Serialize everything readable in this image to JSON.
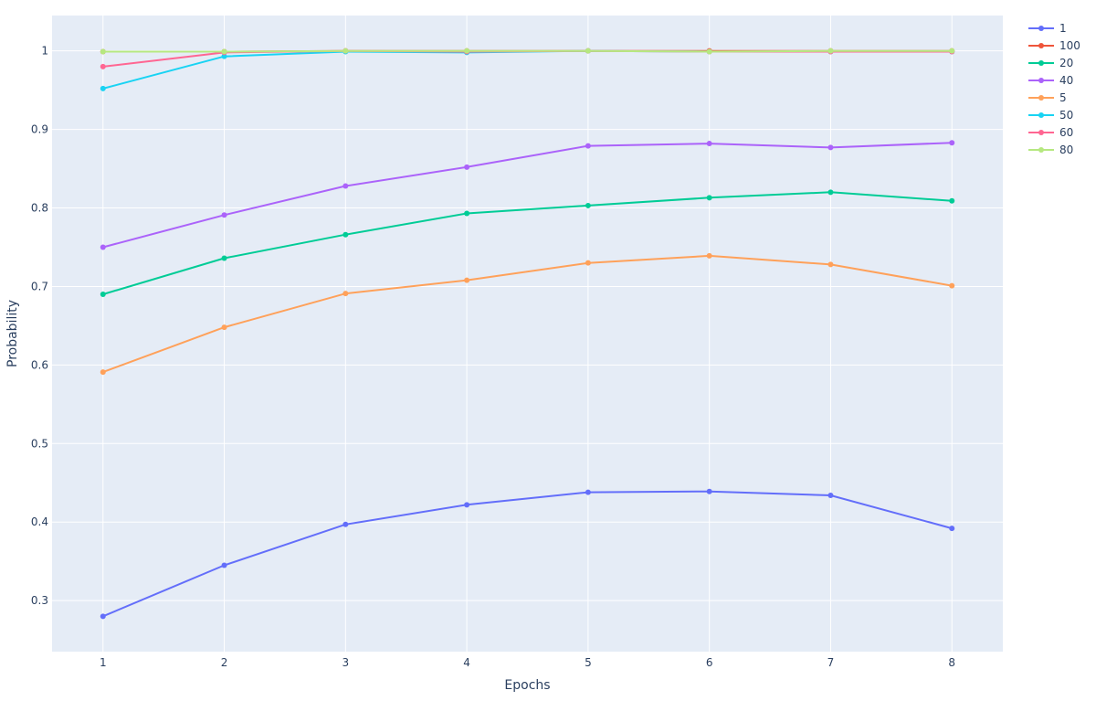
{
  "chart_data": {
    "type": "line",
    "xlabel": "Epochs",
    "ylabel": "Probability",
    "x": [
      1,
      2,
      3,
      4,
      5,
      6,
      7,
      8
    ],
    "xlim": [
      0.58,
      8.42
    ],
    "ylim": [
      0.235,
      1.045
    ],
    "yticks": [
      0.3,
      0.4,
      0.5,
      0.6,
      0.7,
      0.8,
      0.9,
      1
    ],
    "ytick_labels": [
      "0.3",
      "0.4",
      "0.5",
      "0.6",
      "0.7",
      "0.8",
      "0.9",
      "1"
    ],
    "xtick_labels": [
      "1",
      "2",
      "3",
      "4",
      "5",
      "6",
      "7",
      "8"
    ],
    "grid": true,
    "legend_position": "top-right",
    "background_color": "#e5ecf6",
    "series": [
      {
        "name": "1",
        "color": "#636efa",
        "values": [
          0.28,
          0.345,
          0.397,
          0.422,
          0.438,
          0.439,
          0.434,
          0.392
        ]
      },
      {
        "name": "100",
        "color": "#ef553b",
        "values": [
          0.999,
          0.999,
          1.0,
          1.0,
          1.0,
          1.0,
          1.0,
          1.0
        ]
      },
      {
        "name": "20",
        "color": "#00cc96",
        "values": [
          0.69,
          0.736,
          0.766,
          0.793,
          0.803,
          0.813,
          0.82,
          0.809
        ]
      },
      {
        "name": "40",
        "color": "#ab63fa",
        "values": [
          0.75,
          0.791,
          0.828,
          0.852,
          0.879,
          0.882,
          0.877,
          0.883
        ]
      },
      {
        "name": "5",
        "color": "#ffa15a",
        "values": [
          0.591,
          0.648,
          0.691,
          0.708,
          0.73,
          0.739,
          0.728,
          0.701
        ]
      },
      {
        "name": "50",
        "color": "#19d3f3",
        "values": [
          0.952,
          0.993,
          0.999,
          0.998,
          1.0,
          0.999,
          0.999,
          0.999
        ]
      },
      {
        "name": "60",
        "color": "#ff6692",
        "values": [
          0.98,
          0.998,
          1.0,
          0.999,
          1.0,
          0.999,
          0.999,
          0.999
        ]
      },
      {
        "name": "80",
        "color": "#b6e880",
        "values": [
          0.999,
          0.999,
          1.0,
          1.0,
          1.0,
          0.999,
          1.0,
          1.0
        ]
      }
    ]
  }
}
